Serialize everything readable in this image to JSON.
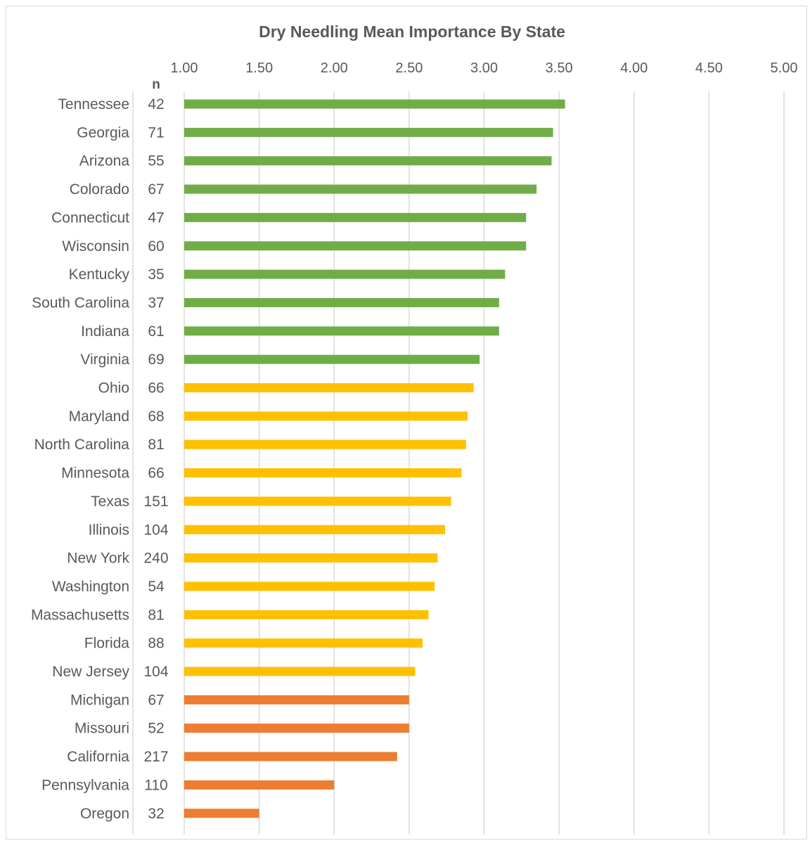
{
  "chart_data": {
    "type": "bar",
    "orientation": "horizontal",
    "title": "Dry Needling Mean Importance By State",
    "xlabel": "",
    "ylabel": "",
    "xlim": [
      1.0,
      5.0
    ],
    "x_ticks": [
      "1.00",
      "1.50",
      "2.00",
      "2.50",
      "3.00",
      "3.50",
      "4.00",
      "4.50",
      "5.00"
    ],
    "x_axis_position": "top",
    "grid": true,
    "legend": "none",
    "n_column_header": "n",
    "colors": {
      "high": "#70ad47",
      "mid": "#ffc000",
      "low": "#ed7d31",
      "grid": "#d9d9d9",
      "text": "#595959"
    },
    "categories": [
      "Tennessee",
      "Georgia",
      "Arizona",
      "Colorado",
      "Connecticut",
      "Wisconsin",
      "Kentucky",
      "South Carolina",
      "Indiana",
      "Virginia",
      "Ohio",
      "Maryland",
      "North Carolina",
      "Minnesota",
      "Texas",
      "Illinois",
      "New York",
      "Washington",
      "Massachusetts",
      "Florida",
      "New Jersey",
      "Michigan",
      "Missouri",
      "California",
      "Pennsylvania",
      "Oregon"
    ],
    "n": [
      "42",
      "71",
      "55",
      "67",
      "47",
      "60",
      "35",
      "37",
      "61",
      "69",
      "66",
      "68",
      "81",
      "66",
      "151",
      "104",
      "240",
      "54",
      "81",
      "88",
      "104",
      "67",
      "52",
      "217",
      "110",
      "32"
    ],
    "values": [
      3.54,
      3.46,
      3.45,
      3.35,
      3.28,
      3.28,
      3.14,
      3.1,
      3.1,
      2.97,
      2.93,
      2.89,
      2.88,
      2.85,
      2.78,
      2.74,
      2.69,
      2.67,
      2.63,
      2.59,
      2.54,
      2.5,
      2.5,
      2.42,
      2.0,
      1.5
    ],
    "color_groups": [
      "high",
      "high",
      "high",
      "high",
      "high",
      "high",
      "high",
      "high",
      "high",
      "high",
      "mid",
      "mid",
      "mid",
      "mid",
      "mid",
      "mid",
      "mid",
      "mid",
      "mid",
      "mid",
      "mid",
      "low",
      "low",
      "low",
      "low",
      "low"
    ]
  }
}
